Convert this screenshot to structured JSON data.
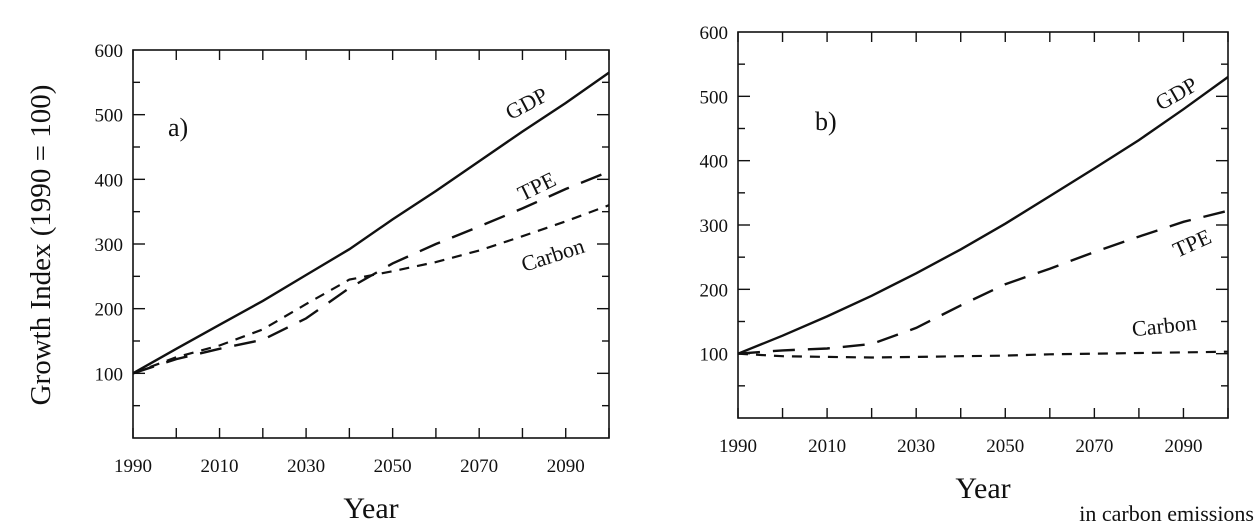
{
  "chart_data": [
    {
      "type": "line",
      "panel_label": "a)",
      "xlabel": "Year",
      "ylabel": "Growth Index (1990 = 100)",
      "xlim": [
        1990,
        2100
      ],
      "ylim": [
        0,
        600
      ],
      "xticks": [
        1990,
        2010,
        2030,
        2050,
        2070,
        2090
      ],
      "yticks": [
        100,
        200,
        300,
        400,
        500,
        600
      ],
      "grid": false,
      "series": [
        {
          "name": "GDP",
          "style": "solid",
          "x": [
            1990,
            2000,
            2010,
            2020,
            2030,
            2040,
            2050,
            2060,
            2070,
            2080,
            2090,
            2100
          ],
          "y": [
            100,
            138,
            175,
            212,
            252,
            292,
            338,
            382,
            428,
            474,
            518,
            565
          ]
        },
        {
          "name": "TPE",
          "style": "long-dash",
          "x": [
            1990,
            2000,
            2010,
            2020,
            2030,
            2040,
            2050,
            2060,
            2070,
            2080,
            2090,
            2100
          ],
          "y": [
            100,
            122,
            138,
            152,
            185,
            232,
            270,
            300,
            327,
            355,
            385,
            412
          ]
        },
        {
          "name": "Carbon",
          "style": "short-dash",
          "x": [
            1990,
            2000,
            2010,
            2020,
            2030,
            2040,
            2050,
            2060,
            2070,
            2080,
            2090,
            2100
          ],
          "y": [
            100,
            125,
            143,
            168,
            207,
            245,
            258,
            272,
            290,
            312,
            335,
            360
          ]
        }
      ]
    },
    {
      "type": "line",
      "panel_label": "b)",
      "xlabel": "Year",
      "xlim": [
        1990,
        2100
      ],
      "ylim": [
        0,
        600
      ],
      "xticks": [
        1990,
        2010,
        2030,
        2050,
        2070,
        2090
      ],
      "yticks": [
        100,
        200,
        300,
        400,
        500,
        600
      ],
      "grid": false,
      "series": [
        {
          "name": "GDP",
          "style": "solid",
          "x": [
            1990,
            2000,
            2010,
            2020,
            2030,
            2040,
            2050,
            2060,
            2070,
            2080,
            2090,
            2100
          ],
          "y": [
            100,
            128,
            158,
            190,
            225,
            262,
            302,
            345,
            388,
            432,
            480,
            530
          ]
        },
        {
          "name": "TPE",
          "style": "long-dash",
          "x": [
            1990,
            2000,
            2010,
            2020,
            2030,
            2040,
            2050,
            2060,
            2070,
            2080,
            2090,
            2100
          ],
          "y": [
            100,
            105,
            108,
            115,
            140,
            175,
            208,
            232,
            258,
            282,
            305,
            322
          ]
        },
        {
          "name": "Carbon",
          "style": "short-dash",
          "x": [
            1990,
            2000,
            2010,
            2020,
            2030,
            2040,
            2050,
            2060,
            2070,
            2080,
            2090,
            2100
          ],
          "y": [
            100,
            96,
            95,
            94,
            95,
            96,
            97,
            99,
            100,
            101,
            102,
            103
          ]
        }
      ]
    }
  ],
  "caption_fragment": "in carbon emissions"
}
